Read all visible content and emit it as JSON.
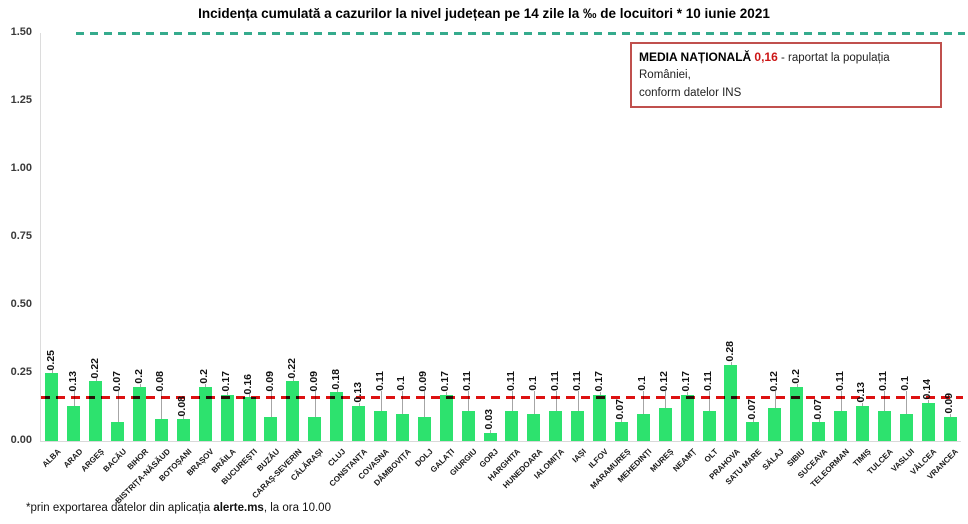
{
  "annotation_box": {
    "label": "MEDIA NAȚIONALĂ",
    "value": "0,16",
    "text_after": "- raportat la populația României,",
    "text_line2": "conform datelor INS",
    "border_color": "#c0504d",
    "value_color": "#cc1616"
  },
  "footnote": {
    "pre": "*prin exportarea datelor din aplicația ",
    "bold": "alerte.ms",
    "post": ", la ora 10.00"
  },
  "chart_data": {
    "type": "bar",
    "title": "Incidența cumulată a cazurilor la nivel județean pe 14 zile la ‰ de locuitori *  10 iunie 2021",
    "categories": [
      "ALBA",
      "ARAD",
      "ARGEȘ",
      "BACĂU",
      "BIHOR",
      "BISTRIȚA-NĂSĂUD",
      "BOTOȘANI",
      "BRAȘOV",
      "BRĂILA",
      "BUCUREȘTI",
      "BUZĂU",
      "CARAȘ-SEVERIN",
      "CĂLĂRAȘI",
      "CLUJ",
      "CONSTANȚA",
      "COVASNA",
      "DÂMBOVIȚA",
      "DOLJ",
      "GALAȚI",
      "GIURGIU",
      "GORJ",
      "HARGHITA",
      "HUNEDOARA",
      "IALOMIȚA",
      "IAȘI",
      "ILFOV",
      "MARAMUREȘ",
      "MEHEDINȚI",
      "MUREȘ",
      "NEAMȚ",
      "OLT",
      "PRAHOVA",
      "SATU MARE",
      "SĂLAJ",
      "SIBIU",
      "SUCEAVA",
      "TELEORMAN",
      "TIMIȘ",
      "TULCEA",
      "VASLUI",
      "VÂLCEA",
      "VRANCEA"
    ],
    "values": [
      0.25,
      0.13,
      0.22,
      0.07,
      0.2,
      0.08,
      0.08,
      0.2,
      0.17,
      0.16,
      0.09,
      0.22,
      0.09,
      0.18,
      0.13,
      0.11,
      0.1,
      0.09,
      0.17,
      0.11,
      0.03,
      0.11,
      0.1,
      0.11,
      0.11,
      0.17,
      0.07,
      0.1,
      0.12,
      0.17,
      0.11,
      0.28,
      0.07,
      0.12,
      0.2,
      0.07,
      0.11,
      0.13,
      0.11,
      0.1,
      0.14,
      0.09
    ],
    "value_labels": [
      "0.25",
      "0.13",
      "0.22",
      "0.07",
      "0.2",
      "0.08",
      "0.08",
      "0.2",
      "0.17",
      "0.16",
      "0.09",
      "0.22",
      "0.09",
      "0.18",
      "0.13",
      "0.11",
      "0.1",
      "0.09",
      "0.17",
      "0.11",
      "0.03",
      "0.11",
      "0.1",
      "0.11",
      "0.11",
      "0.17",
      "0.07",
      "0.1",
      "0.12",
      "0.17",
      "0.11",
      "0.28",
      "0.07",
      "0.12",
      "0.2",
      "0.07",
      "0.11",
      "0.13",
      "0.11",
      "0.1",
      "0.14",
      "0.09"
    ],
    "lifted_value_labels": [
      false,
      true,
      false,
      true,
      false,
      true,
      false,
      false,
      false,
      false,
      true,
      false,
      true,
      false,
      false,
      true,
      true,
      true,
      false,
      true,
      false,
      true,
      true,
      true,
      true,
      false,
      false,
      true,
      true,
      false,
      true,
      false,
      false,
      true,
      false,
      false,
      true,
      false,
      true,
      true,
      false,
      false
    ],
    "ylim": [
      0,
      1.5
    ],
    "yticks": [
      "1.50",
      "1.25",
      "1.00",
      "0.75",
      "0.50",
      "0.25",
      "0.00"
    ],
    "grid": false,
    "legend_position": "none",
    "bar_color": "#2de26e",
    "reference_lines": [
      {
        "name": "media-nationala",
        "value": 0.16,
        "color": "#dd1111",
        "style": "dashed"
      },
      {
        "name": "prag-superior",
        "value": 1.5,
        "color": "#35ab8d",
        "style": "dashed"
      }
    ]
  }
}
